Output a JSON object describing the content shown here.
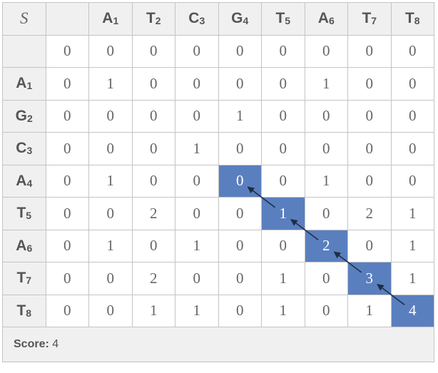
{
  "corner_symbol": "S",
  "column_headers": [
    {
      "letter": "",
      "index": ""
    },
    {
      "letter": "A",
      "index": "1"
    },
    {
      "letter": "T",
      "index": "2"
    },
    {
      "letter": "C",
      "index": "3"
    },
    {
      "letter": "G",
      "index": "4"
    },
    {
      "letter": "T",
      "index": "5"
    },
    {
      "letter": "A",
      "index": "6"
    },
    {
      "letter": "T",
      "index": "7"
    },
    {
      "letter": "T",
      "index": "8"
    }
  ],
  "row_headers": [
    {
      "letter": "",
      "index": ""
    },
    {
      "letter": "A",
      "index": "1"
    },
    {
      "letter": "G",
      "index": "2"
    },
    {
      "letter": "C",
      "index": "3"
    },
    {
      "letter": "A",
      "index": "4"
    },
    {
      "letter": "T",
      "index": "5"
    },
    {
      "letter": "A",
      "index": "6"
    },
    {
      "letter": "T",
      "index": "7"
    },
    {
      "letter": "T",
      "index": "8"
    }
  ],
  "matrix": [
    [
      "0",
      "0",
      "0",
      "0",
      "0",
      "0",
      "0",
      "0",
      "0"
    ],
    [
      "0",
      "1",
      "0",
      "0",
      "0",
      "0",
      "1",
      "0",
      "0"
    ],
    [
      "0",
      "0",
      "0",
      "0",
      "1",
      "0",
      "0",
      "0",
      "0"
    ],
    [
      "0",
      "0",
      "0",
      "1",
      "0",
      "0",
      "0",
      "0",
      "0"
    ],
    [
      "0",
      "1",
      "0",
      "0",
      "0",
      "0",
      "1",
      "0",
      "0"
    ],
    [
      "0",
      "0",
      "2",
      "0",
      "0",
      "1",
      "0",
      "2",
      "1"
    ],
    [
      "0",
      "1",
      "0",
      "1",
      "0",
      "0",
      "2",
      "0",
      "1"
    ],
    [
      "0",
      "0",
      "2",
      "0",
      "0",
      "1",
      "0",
      "3",
      "1"
    ],
    [
      "0",
      "0",
      "1",
      "1",
      "0",
      "1",
      "0",
      "1",
      "4"
    ]
  ],
  "traceback_path": [
    [
      4,
      4
    ],
    [
      5,
      5
    ],
    [
      6,
      6
    ],
    [
      7,
      7
    ],
    [
      8,
      8
    ]
  ],
  "colors": {
    "highlight": "#5a7fbf",
    "arrow": "#1f2d44",
    "header_bg": "#f0f0f0",
    "border": "#c4c4c4"
  },
  "score": {
    "label": "Score:",
    "value": "4"
  }
}
